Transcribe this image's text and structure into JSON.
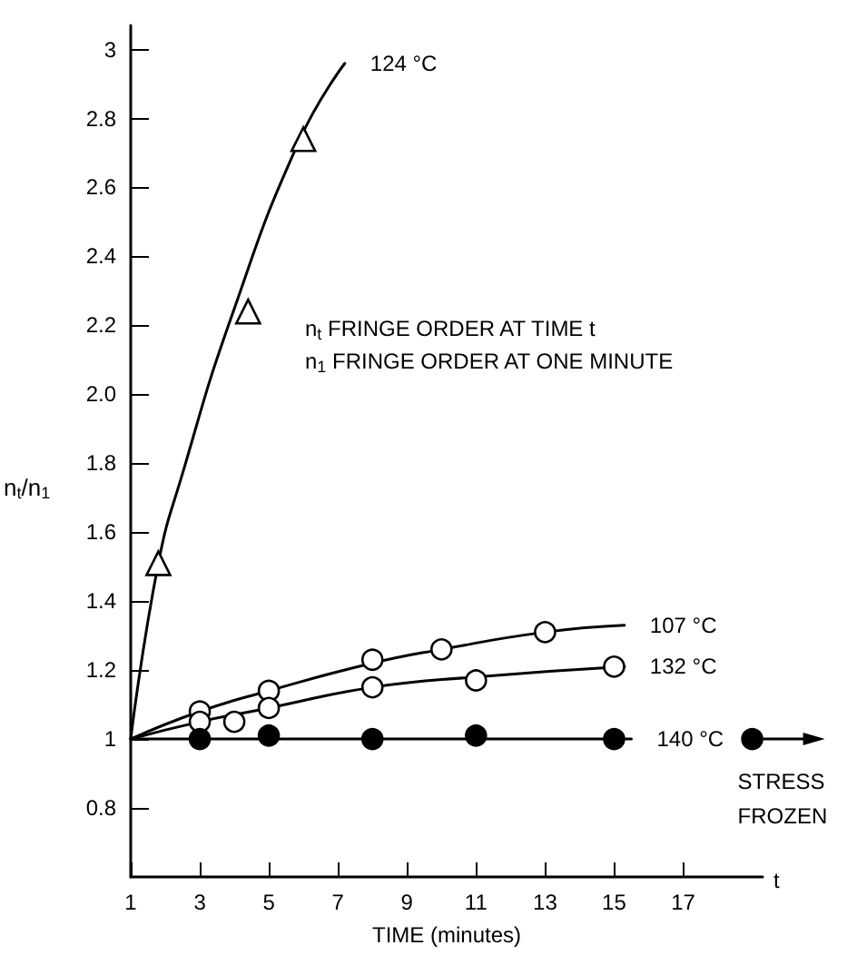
{
  "chart_data": {
    "type": "line",
    "xlabel": "TIME (minutes)",
    "ylabel": "n$_{t}$/n$_{1}$",
    "xlim": [
      1,
      19.3
    ],
    "xticks": [
      1,
      3,
      5,
      7,
      9,
      11,
      13,
      15,
      17
    ],
    "ylim": [
      0.6,
      3.07
    ],
    "yticks": [
      0.8,
      1,
      1.2,
      1.4,
      1.6,
      1.8,
      {
        "value": 2,
        "label": "2.0"
      },
      2.2,
      2.4,
      2.6,
      2.8,
      3
    ],
    "annotations": [
      "n$_{t}$ FRINGE ORDER AT TIME t",
      "n$_{1}$ FRINGE ORDER AT ONE MINUTE",
      "t",
      {
        "text": "STRESS FROZEN",
        "x": 19,
        "y": 1
      }
    ],
    "series": [
      {
        "name": "124 °C",
        "color": "#000000",
        "marker": "none",
        "x": [
          1,
          1.8,
          2.5,
          3.9,
          5.9,
          7.2
        ],
        "values": [
          1,
          1.51,
          1.77,
          2.22,
          2.74,
          2.96
        ]
      },
      {
        "type": "scatter",
        "color": "#ffffff",
        "marker": "triangle",
        "x": [
          1.8,
          4.4,
          6
        ],
        "values": [
          1.51,
          2.24,
          2.74
        ]
      },
      {
        "name": "107 °C",
        "color": "#000000",
        "marker": "none",
        "x": [
          1,
          3,
          5,
          8,
          10,
          13,
          15.3
        ],
        "values": [
          1,
          1.08,
          1.14,
          1.22,
          1.26,
          1.31,
          1.33
        ]
      },
      {
        "type": "scatter",
        "color": "#ffffff",
        "marker": "circle",
        "x": [
          3,
          5,
          8,
          10,
          13
        ],
        "values": [
          1.08,
          1.14,
          1.23,
          1.26,
          1.31
        ]
      },
      {
        "name": "132 °C",
        "color": "#000000",
        "marker": "none",
        "x": [
          1,
          3,
          5,
          8,
          11,
          15.3
        ],
        "values": [
          1,
          1.05,
          1.09,
          1.15,
          1.18,
          1.21
        ]
      },
      {
        "type": "scatter",
        "color": "#ffffff",
        "marker": "circle",
        "x": [
          3,
          4,
          5,
          8,
          11,
          15
        ],
        "values": [
          1.05,
          1.05,
          1.09,
          1.15,
          1.17,
          1.21
        ]
      },
      {
        "name": "140 °C",
        "color": "#000000",
        "marker": "none",
        "x": [
          1,
          15.5
        ],
        "values": [
          1,
          1
        ]
      },
      {
        "type": "scatter",
        "color": "#000000",
        "marker": "circle",
        "x": [
          3,
          5,
          8,
          11,
          15,
          19
        ],
        "values": [
          1,
          1.01,
          1,
          1.01,
          1,
          1
        ]
      }
    ]
  }
}
